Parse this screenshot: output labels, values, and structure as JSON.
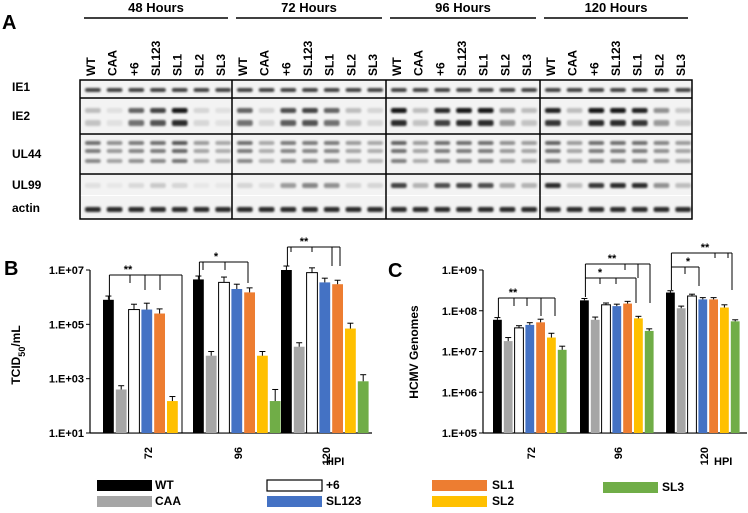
{
  "figure": {
    "panel_a": {
      "letter": "A",
      "timepoints": [
        "48 Hours",
        "72 Hours",
        "96 Hours",
        "120 Hours"
      ],
      "lanes": [
        "WT",
        "CAA",
        "+6",
        "SL123",
        "SL1",
        "SL2",
        "SL3"
      ],
      "proteins": [
        "IE1",
        "IE2",
        "UL44",
        "UL99",
        "actin"
      ]
    },
    "panel_b_letter": "B",
    "panel_c_letter": "C"
  },
  "legend": {
    "items": [
      {
        "label": "WT",
        "color": "#000000"
      },
      {
        "label": "CAA",
        "color": "#a6a6a6"
      },
      {
        "label": "+6",
        "color": "#ffffff"
      },
      {
        "label": "SL123",
        "color": "#4472c4"
      },
      {
        "label": "SL1",
        "color": "#ed7d31"
      },
      {
        "label": "SL2",
        "color": "#ffc000"
      },
      {
        "label": "SL3",
        "color": "#70ad47"
      }
    ]
  },
  "chart_data": [
    {
      "type": "bar",
      "panel": "B",
      "ylabel_main": "TCID",
      "ylabel_sub": "50",
      "ylabel_tail": "/mL",
      "yscale": "log",
      "ylim": [
        10,
        10000000
      ],
      "yticks": [
        "1.E+01",
        "1.E+03",
        "1.E+05",
        "1.E+07"
      ],
      "ytick_values": [
        10,
        1000,
        100000,
        10000000
      ],
      "categories": [
        "72",
        "96",
        "120"
      ],
      "xunit": "HPI",
      "series": [
        {
          "name": "WT",
          "color": "#000000",
          "values": [
            800000,
            4500000,
            10000000
          ],
          "errors": [
            300000,
            1500000,
            4000000
          ]
        },
        {
          "name": "CAA",
          "color": "#a6a6a6",
          "values": [
            400,
            7000,
            15000
          ],
          "errors": [
            150,
            3000,
            6000
          ]
        },
        {
          "name": "+6",
          "color": "#ffffff",
          "values": [
            350000,
            3500000,
            8000000
          ],
          "errors": [
            200000,
            2000000,
            4000000
          ]
        },
        {
          "name": "SL123",
          "color": "#4472c4",
          "values": [
            350000,
            2000000,
            3500000
          ],
          "errors": [
            250000,
            1000000,
            1500000
          ]
        },
        {
          "name": "SL1",
          "color": "#ed7d31",
          "values": [
            250000,
            1500000,
            3000000
          ],
          "errors": [
            120000,
            700000,
            1200000
          ]
        },
        {
          "name": "SL2",
          "color": "#ffc000",
          "values": [
            150,
            7000,
            70000
          ],
          "errors": [
            70,
            3000,
            40000
          ]
        },
        {
          "name": "SL3",
          "color": "#70ad47",
          "values": [
            null,
            150,
            800
          ],
          "errors": [
            null,
            250,
            600
          ]
        }
      ],
      "significance": [
        {
          "group": 0,
          "label": "**"
        },
        {
          "group": 1,
          "label": "*"
        },
        {
          "group": 2,
          "label": "**"
        }
      ]
    },
    {
      "type": "bar",
      "panel": "C",
      "ylabel": "HCMV Genomes",
      "yscale": "log",
      "ylim": [
        100000,
        1000000000
      ],
      "yticks": [
        "1.E+05",
        "1.E+06",
        "1.E+07",
        "1.E+08",
        "1.E+09"
      ],
      "ytick_values": [
        100000,
        1000000,
        10000000,
        100000000,
        1000000000
      ],
      "categories": [
        "72",
        "96",
        "120"
      ],
      "xunit": "HPI",
      "series": [
        {
          "name": "WT",
          "color": "#000000",
          "values": [
            60000000,
            180000000,
            280000000
          ],
          "errors": [
            8000000,
            20000000,
            30000000
          ]
        },
        {
          "name": "CAA",
          "color": "#a6a6a6",
          "values": [
            18000000,
            60000000,
            115000000
          ],
          "errors": [
            4000000,
            10000000,
            15000000
          ]
        },
        {
          "name": "+6",
          "color": "#ffffff",
          "values": [
            38000000,
            140000000,
            230000000
          ],
          "errors": [
            5000000,
            15000000,
            25000000
          ]
        },
        {
          "name": "SL123",
          "color": "#4472c4",
          "values": [
            45000000,
            130000000,
            190000000
          ],
          "errors": [
            6000000,
            15000000,
            20000000
          ]
        },
        {
          "name": "SL1",
          "color": "#ed7d31",
          "values": [
            52000000,
            150000000,
            190000000
          ],
          "errors": [
            10000000,
            20000000,
            20000000
          ]
        },
        {
          "name": "SL2",
          "color": "#ffc000",
          "values": [
            22000000,
            65000000,
            120000000
          ],
          "errors": [
            6000000,
            8000000,
            20000000
          ]
        },
        {
          "name": "SL3",
          "color": "#70ad47",
          "values": [
            11000000,
            32000000,
            55000000
          ],
          "errors": [
            2500000,
            4000000,
            5000000
          ]
        }
      ],
      "significance": [
        {
          "group": 0,
          "label": "**"
        },
        {
          "group": 1,
          "label": "*"
        },
        {
          "group": 1,
          "label": "**"
        },
        {
          "group": 2,
          "label": "*"
        },
        {
          "group": 2,
          "label": "**"
        }
      ]
    }
  ]
}
